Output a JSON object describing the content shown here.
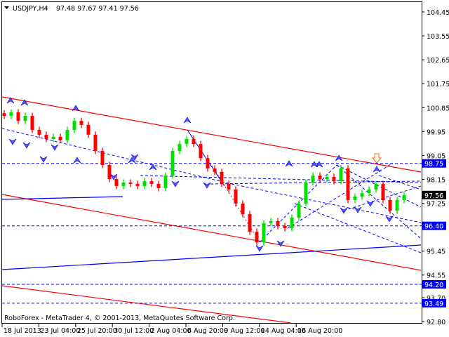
{
  "header": {
    "menu_icon": "triangle-down-icon",
    "symbol": "USDJPY,H4",
    "ohlc": "97.48 97.67 97.41 97.56"
  },
  "footer": {
    "copyright": "RoboForex - MetaTrader 4, © 2001-2013, MetaQuotes Software Corp."
  },
  "colors": {
    "bull": "#00e000",
    "bear": "#ff0000",
    "level": "#0000ff",
    "channel": "#ff0000",
    "current_price_bg": "#000000"
  },
  "chart_data": {
    "type": "candlestick",
    "title": "USDJPY,H4",
    "ylim": [
      92.8,
      104.45
    ],
    "y_ticks": [
      "104.45",
      "103.55",
      "102.65",
      "101.75",
      "100.85",
      "99.95",
      "99.05",
      "98.15",
      "97.25",
      "95.45",
      "94.55",
      "93.70",
      "92.80"
    ],
    "x_ticks": [
      "18 Jul 2013",
      "23 Jul 04:00",
      "25 Jul 20:00",
      "30 Jul 12:00",
      "2 Aug 04:00",
      "6 Aug 20:00",
      "9 Aug 12:00",
      "14 Aug 04:00",
      "16 Aug 20:00"
    ],
    "close": [
      100.54,
      100.67,
      100.35,
      100.54,
      100.01,
      99.83,
      99.67,
      99.75,
      99.62,
      100.01,
      100.35,
      100.2,
      99.83,
      99.22,
      98.69,
      98.16,
      97.9,
      98.03,
      97.98,
      97.9,
      98.08,
      97.98,
      97.82,
      98.29,
      99.22,
      99.48,
      99.67,
      99.48,
      98.95,
      98.56,
      98.43,
      97.98,
      97.77,
      97.24,
      96.84,
      96.18,
      95.78,
      96.5,
      96.58,
      96.39,
      96.31,
      96.71,
      97.24,
      98.03,
      98.29,
      98.16,
      98.24,
      98.08,
      98.56,
      97.37,
      97.5,
      97.63,
      97.77,
      97.98,
      97.37,
      96.97,
      97.37,
      97.56
    ],
    "levels": [
      {
        "price": "98.75",
        "style": "dashed"
      },
      {
        "price": "96.40",
        "style": "dashed"
      },
      {
        "price": "94.20",
        "style": "dashed"
      },
      {
        "price": "93.49",
        "style": "dashed"
      }
    ],
    "current_price": "97.56",
    "grid": false
  }
}
